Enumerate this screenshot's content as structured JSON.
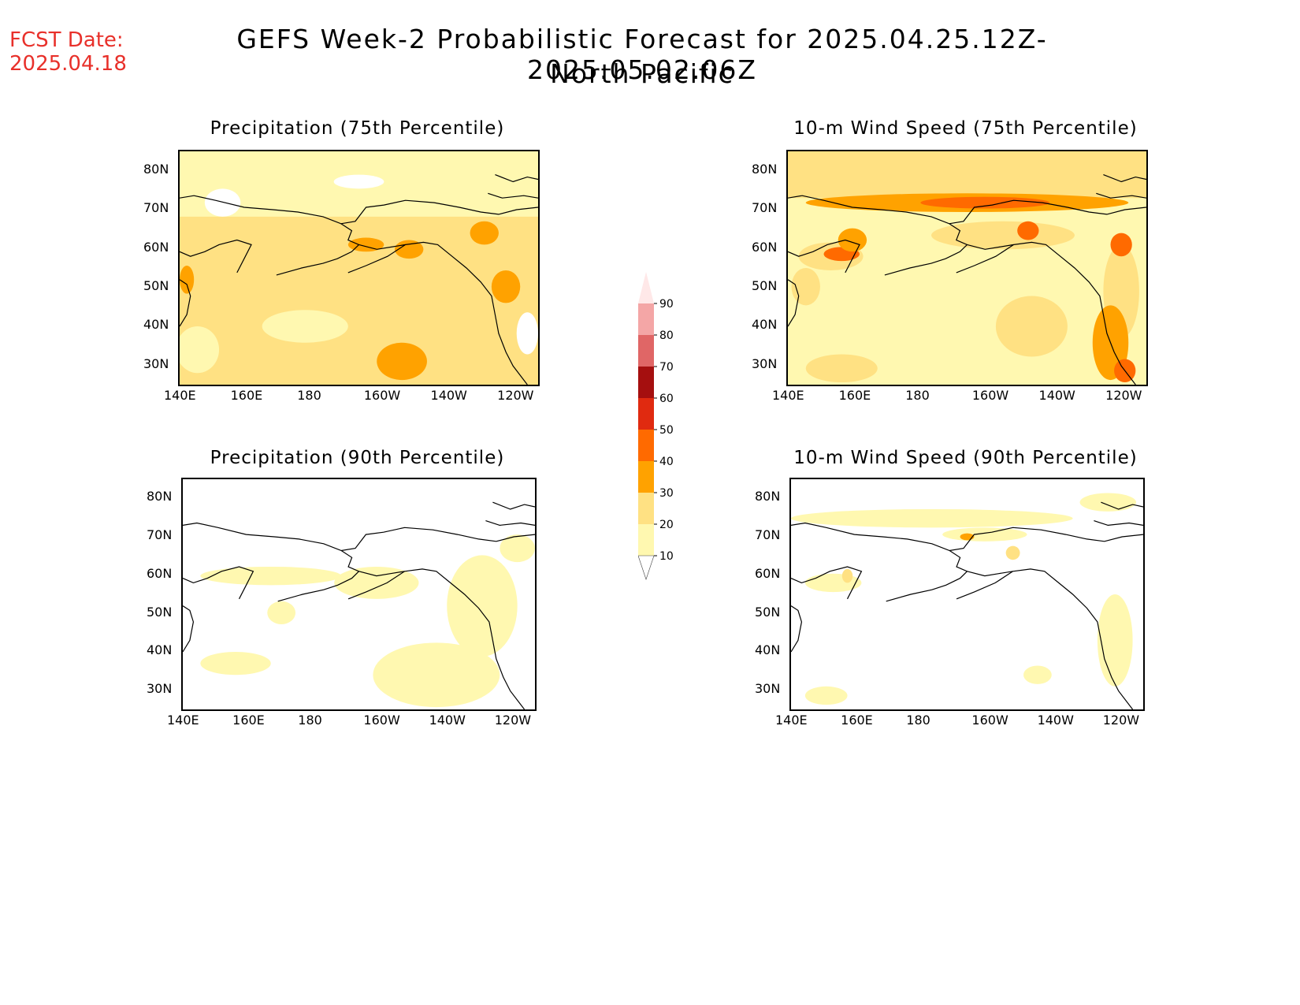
{
  "header": {
    "fcst_label": "FCST Date:",
    "fcst_date": "2025.04.18",
    "title_line1": "GEFS Week-2 Probabilistic Forecast for 2025.04.25.12Z-2025.05.02.06Z",
    "title_line2": "North Pacific"
  },
  "axes": {
    "lon_labels": [
      "140E",
      "160E",
      "180",
      "160W",
      "140W",
      "120W"
    ],
    "lat_labels": [
      "80N",
      "70N",
      "60N",
      "50N",
      "40N",
      "30N"
    ]
  },
  "panels": [
    {
      "title": "Precipitation (75th Percentile)",
      "level": "high-precip"
    },
    {
      "title": "10-m Wind Speed (75th Percentile)",
      "level": "high-wind"
    },
    {
      "title": "Precipitation (90th Percentile)",
      "level": "low-precip"
    },
    {
      "title": "10-m Wind Speed (90th Percentile)",
      "level": "low-wind"
    }
  ],
  "colorbar": {
    "labels": [
      "90",
      "80",
      "70",
      "60",
      "50",
      "40",
      "30",
      "20",
      "10"
    ],
    "colors": [
      "#ffe8e8",
      "#f4a6a6",
      "#e06666",
      "#a50f0f",
      "#e02a10",
      "#ff6a00",
      "#ffa200",
      "#ffe183",
      "#fff8b0"
    ],
    "units": "%"
  }
}
